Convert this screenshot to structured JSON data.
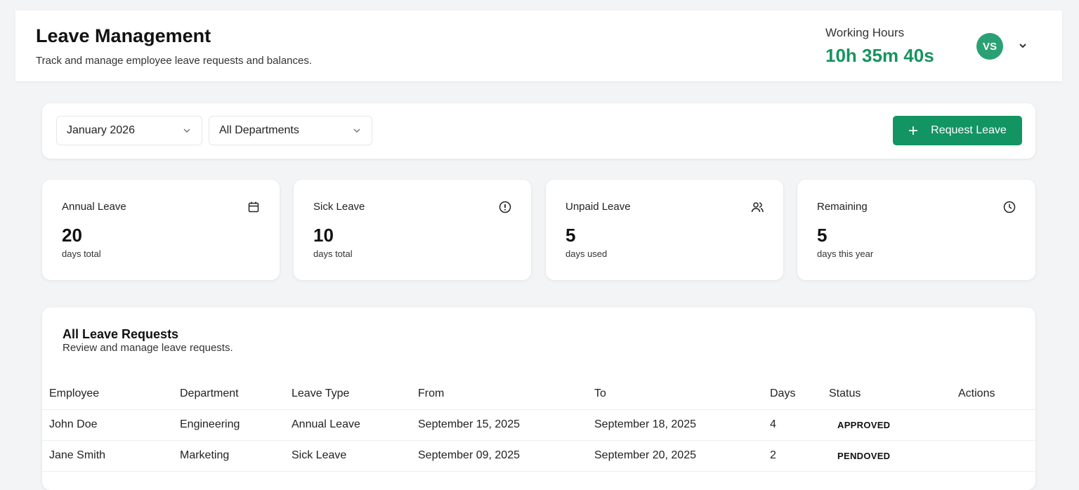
{
  "header": {
    "title": "Leave Management",
    "subtitle": "Track and manage employee leave requests and balances.",
    "working_hours_label": "Working Hours",
    "working_hours_value": "10h 35m 40s",
    "avatar_initials": "VS"
  },
  "filters": {
    "month": "January 2026",
    "department": "All Departments",
    "request_button": "Request Leave"
  },
  "stats": [
    {
      "label": "Annual Leave",
      "value": "20",
      "sub": "days total",
      "icon": "calendar-icon"
    },
    {
      "label": "Sick Leave",
      "value": "10",
      "sub": "days total",
      "icon": "alert-circle-icon"
    },
    {
      "label": "Unpaid Leave",
      "value": "5",
      "sub": "days used",
      "icon": "users-icon"
    },
    {
      "label": "Remaining",
      "value": "5",
      "sub": "days this year",
      "icon": "clock-icon"
    }
  ],
  "table": {
    "title": "All Leave Requests",
    "subtitle": "Review and manage leave requests.",
    "columns": [
      "Employee",
      "Department",
      "Leave Type",
      "From",
      "To",
      "Days",
      "Status",
      "Actions"
    ],
    "rows": [
      {
        "employee": "John Doe",
        "department": "Engineering",
        "type": "Annual Leave",
        "from": "September 15, 2025",
        "to": "September 18, 2025",
        "days": "4",
        "status": "APPROVED"
      },
      {
        "employee": "Jane Smith",
        "department": "Marketing",
        "type": "Sick Leave",
        "from": "September 09, 2025",
        "to": "September 20, 2025",
        "days": "2",
        "status": "PENDOVED"
      }
    ]
  },
  "colors": {
    "accent": "#139463",
    "hours": "#17935f",
    "avatar": "#2aa174"
  }
}
